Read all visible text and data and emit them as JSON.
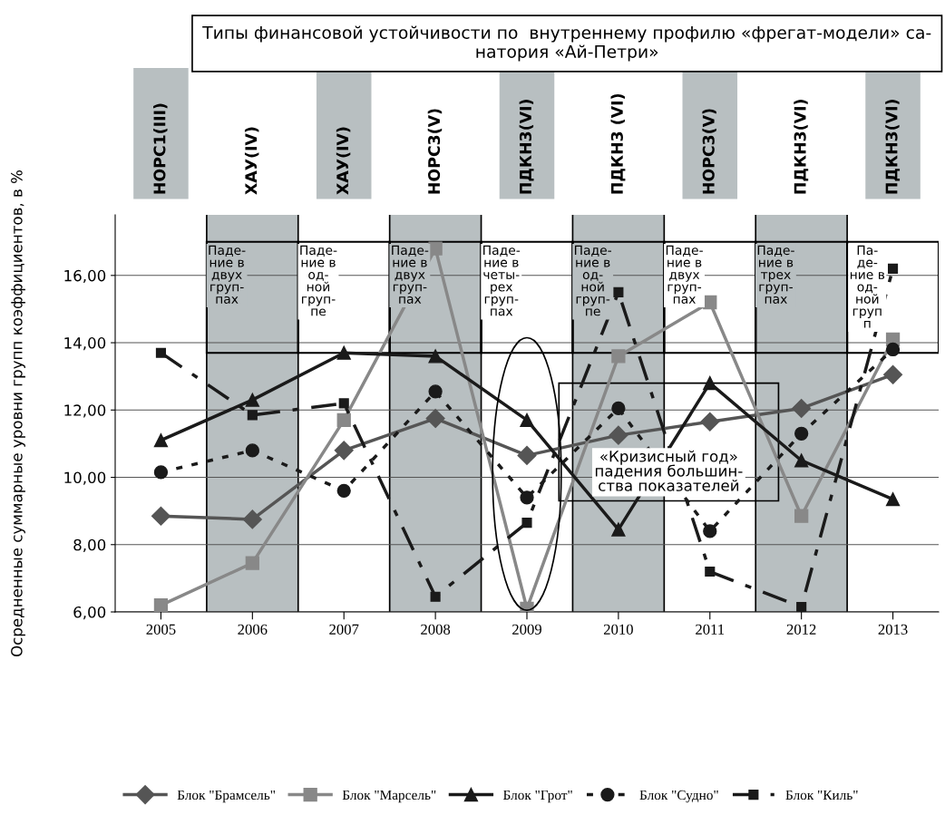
{
  "chart_data": {
    "type": "line",
    "title": "Типы финансовой устойчивости по  внутреннему профилю «фрегат-модели» са-\nнатория «Ай-Петри»",
    "ylabel": "Осредненные суммарные уровни групп коэффициентов, в %",
    "categories": [
      "2005",
      "2006",
      "2007",
      "2008",
      "2009",
      "2010",
      "2011",
      "2012",
      "2013"
    ],
    "series": [
      {
        "name": "Блок \"Брамсель\"",
        "color": "#555555",
        "marker": "diamond",
        "line_style": "solid",
        "values": [
          8.85,
          8.75,
          10.8,
          11.75,
          10.65,
          11.25,
          11.65,
          12.05,
          13.05
        ]
      },
      {
        "name": "Блок \"Марсель\"",
        "color": "#888888",
        "marker": "square",
        "line_style": "solid",
        "values": [
          6.2,
          7.45,
          11.7,
          16.8,
          6.1,
          13.6,
          15.2,
          8.85,
          14.1
        ]
      },
      {
        "name": "Блок \"Грот\"",
        "color": "#1a1a1a",
        "marker": "triangle",
        "line_style": "solid",
        "values": [
          11.1,
          12.3,
          13.7,
          13.6,
          11.7,
          8.45,
          12.8,
          10.5,
          9.35
        ]
      },
      {
        "name": "Блок \"Судно\"",
        "color": "#1a1a1a",
        "marker": "circle",
        "line_style": "dotted",
        "values": [
          10.15,
          10.8,
          9.6,
          12.55,
          9.4,
          12.05,
          8.4,
          11.3,
          13.8
        ]
      },
      {
        "name": "Блок \"Киль\"",
        "color": "#1a1a1a",
        "marker": "square",
        "line_style": "dashed",
        "values": [
          13.7,
          11.85,
          12.2,
          6.45,
          8.65,
          15.5,
          7.2,
          6.15,
          16.2
        ]
      }
    ],
    "ylim": [
      6,
      17.8
    ],
    "yticks": [
      {
        "value": 6,
        "label": "6,00"
      },
      {
        "value": 8,
        "label": "8,00"
      },
      {
        "value": 10,
        "label": "10,00"
      },
      {
        "value": 12,
        "label": "12,00"
      },
      {
        "value": 14,
        "label": "14,00"
      },
      {
        "value": 16,
        "label": "16,00"
      }
    ],
    "grid": "y",
    "legend": "bottom",
    "bands": [
      {
        "axis": "x",
        "from": "2006",
        "to": "2006",
        "color": "#b8bfc1"
      },
      {
        "axis": "x",
        "from": "2008",
        "to": "2008",
        "color": "#b8bfc1"
      },
      {
        "axis": "x",
        "from": "2010",
        "to": "2010",
        "color": "#b8bfc1"
      },
      {
        "axis": "x",
        "from": "2012",
        "to": "2012",
        "color": "#b8bfc1"
      }
    ],
    "annotations": [
      "НОРС1(III)",
      "ХАУ(IV)",
      "ХАУ(IV)",
      "НОРС3(V)",
      "ПДКН3(VI)",
      "ПДКН3 (VI)",
      "НОРС3(V)",
      "ПДКН3(VI)",
      "ПДКН3(VI)",
      "Паде-\nние в\nдвух\nгруп-\nпах",
      "Паде-\nние в\nод-\nной\nгруп-\nпе",
      "Паде-\nние в\nдвух\nгруп-\nпах",
      "Паде-\nние в\nчеты-\nрех\nгруп-\nпах",
      "Паде-\nние в\nод-\nной\nгруп-\nпе",
      "Паде-\nние в\nдвух\nгруп-\nпах",
      "Паде-\nние в\nтрех\nгруп-\nпах",
      "Па-\nде-\nние в\nод-\nной\nгруп\nп",
      "«Кризисный год»\nпадения большин-\nства показателей"
    ]
  }
}
